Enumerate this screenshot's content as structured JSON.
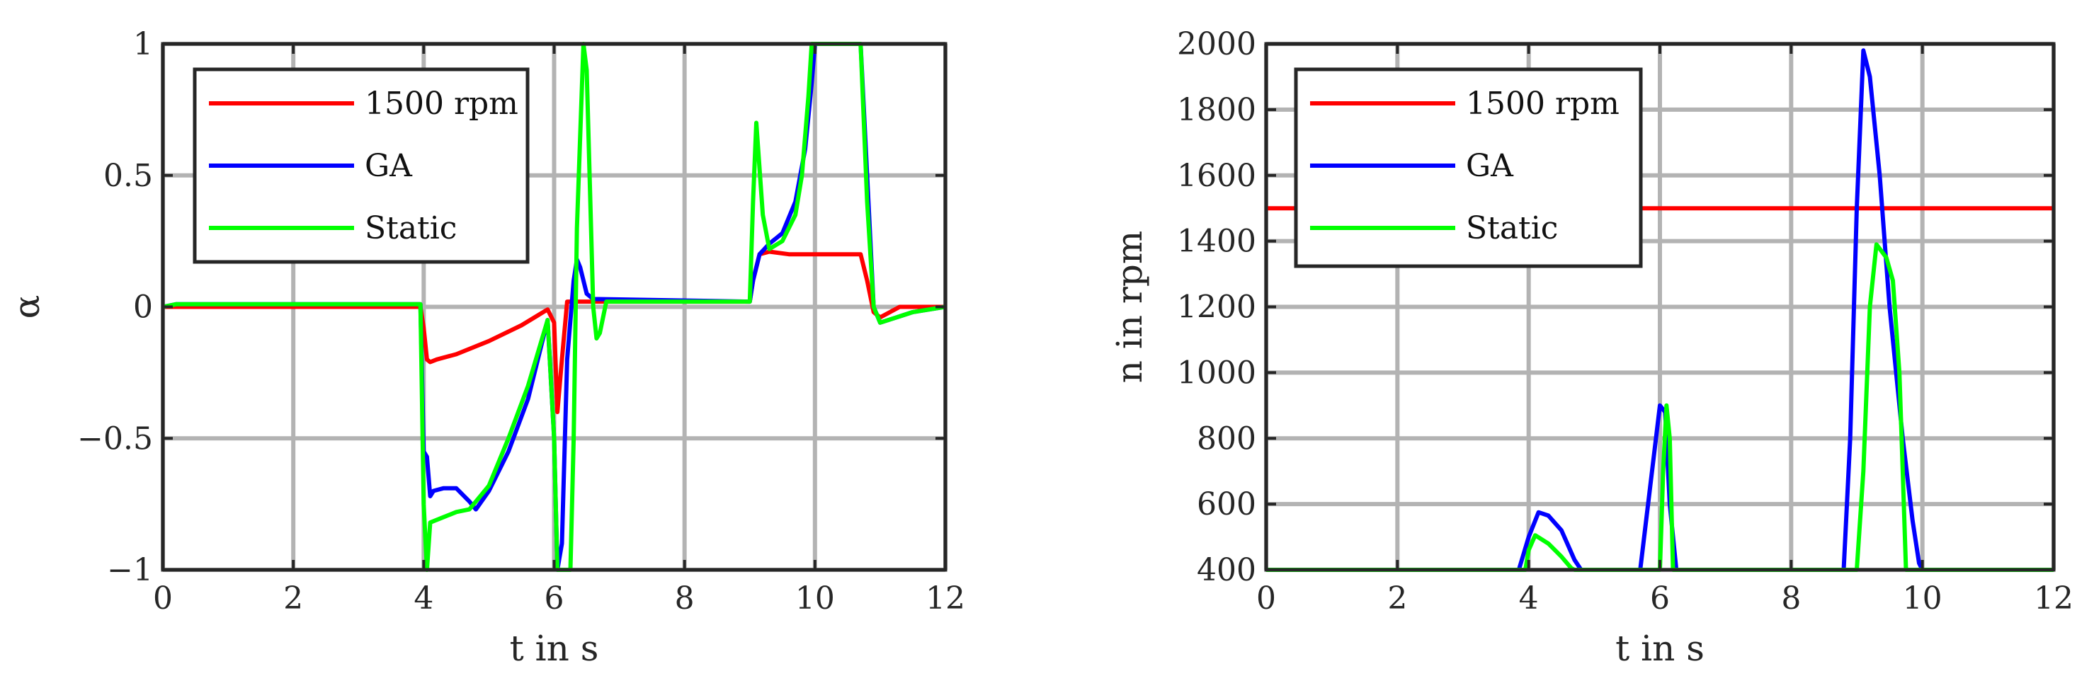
{
  "chart_data": [
    {
      "type": "line",
      "xlabel": "t in s",
      "ylabel": "α",
      "xlim": [
        0,
        12
      ],
      "ylim": [
        -1,
        1
      ],
      "xticks": [
        0,
        2,
        4,
        6,
        8,
        10,
        12
      ],
      "yticks": [
        -1,
        -0.5,
        0,
        0.5,
        1
      ],
      "xtick_labels": [
        "0",
        "2",
        "4",
        "6",
        "8",
        "10",
        "12"
      ],
      "ytick_labels": [
        "−1",
        "−0.5",
        "0",
        "0.5",
        "1"
      ],
      "grid": true,
      "legend_position": "top-left",
      "series": [
        {
          "name": "1500 rpm",
          "color": "#ff0000",
          "points": [
            [
              0,
              0
            ],
            [
              3.95,
              0
            ],
            [
              4.0,
              -0.08
            ],
            [
              4.05,
              -0.2
            ],
            [
              4.1,
              -0.21
            ],
            [
              4.2,
              -0.2
            ],
            [
              4.5,
              -0.18
            ],
            [
              5.0,
              -0.13
            ],
            [
              5.5,
              -0.07
            ],
            [
              5.9,
              -0.01
            ],
            [
              6.0,
              -0.06
            ],
            [
              6.05,
              -0.4
            ],
            [
              6.12,
              -0.2
            ],
            [
              6.2,
              0.02
            ],
            [
              6.3,
              0.02
            ],
            [
              9.0,
              0.02
            ],
            [
              9.05,
              0.1
            ],
            [
              9.15,
              0.2
            ],
            [
              9.3,
              0.21
            ],
            [
              9.6,
              0.2
            ],
            [
              10.7,
              0.2
            ],
            [
              10.8,
              0.1
            ],
            [
              10.9,
              -0.02
            ],
            [
              11.0,
              -0.04
            ],
            [
              11.3,
              0
            ],
            [
              12,
              0
            ]
          ]
        },
        {
          "name": "GA",
          "color": "#0000ff",
          "points": [
            [
              0,
              0
            ],
            [
              0.2,
              0.01
            ],
            [
              3.95,
              0.01
            ],
            [
              4.0,
              -0.55
            ],
            [
              4.05,
              -0.57
            ],
            [
              4.1,
              -0.72
            ],
            [
              4.15,
              -0.7
            ],
            [
              4.3,
              -0.69
            ],
            [
              4.5,
              -0.69
            ],
            [
              4.7,
              -0.74
            ],
            [
              4.8,
              -0.77
            ],
            [
              5.0,
              -0.7
            ],
            [
              5.3,
              -0.55
            ],
            [
              5.6,
              -0.35
            ],
            [
              5.9,
              -0.05
            ],
            [
              6.0,
              -0.5
            ],
            [
              6.05,
              -1.0
            ],
            [
              6.12,
              -0.9
            ],
            [
              6.2,
              -0.2
            ],
            [
              6.3,
              0.1
            ],
            [
              6.35,
              0.18
            ],
            [
              6.4,
              0.15
            ],
            [
              6.5,
              0.05
            ],
            [
              6.6,
              0.03
            ],
            [
              9.0,
              0.02
            ],
            [
              9.05,
              0.1
            ],
            [
              9.15,
              0.2
            ],
            [
              9.3,
              0.24
            ],
            [
              9.5,
              0.28
            ],
            [
              9.7,
              0.4
            ],
            [
              9.85,
              0.6
            ],
            [
              9.95,
              0.85
            ],
            [
              10.0,
              1
            ],
            [
              10.7,
              1
            ],
            [
              10.8,
              0.5
            ],
            [
              10.9,
              0
            ],
            [
              11.0,
              -0.06
            ],
            [
              11.5,
              -0.02
            ],
            [
              12,
              0
            ]
          ]
        },
        {
          "name": "Static",
          "color": "#00ff00",
          "points": [
            [
              0,
              0
            ],
            [
              0.2,
              0.01
            ],
            [
              3.95,
              0.01
            ],
            [
              4.0,
              -0.75
            ],
            [
              4.05,
              -1.0
            ],
            [
              4.1,
              -0.82
            ],
            [
              4.3,
              -0.8
            ],
            [
              4.5,
              -0.78
            ],
            [
              4.7,
              -0.77
            ],
            [
              5.0,
              -0.68
            ],
            [
              5.3,
              -0.5
            ],
            [
              5.6,
              -0.3
            ],
            [
              5.9,
              -0.05
            ],
            [
              6.0,
              -0.5
            ],
            [
              6.05,
              -1.0
            ],
            [
              6.25,
              -1.0
            ],
            [
              6.3,
              -0.5
            ],
            [
              6.35,
              0.3
            ],
            [
              6.45,
              1.0
            ],
            [
              6.5,
              0.9
            ],
            [
              6.6,
              0.0
            ],
            [
              6.65,
              -0.12
            ],
            [
              6.7,
              -0.1
            ],
            [
              6.8,
              0.02
            ],
            [
              9.0,
              0.02
            ],
            [
              9.05,
              0.4
            ],
            [
              9.1,
              0.7
            ],
            [
              9.2,
              0.35
            ],
            [
              9.3,
              0.22
            ],
            [
              9.5,
              0.25
            ],
            [
              9.7,
              0.35
            ],
            [
              9.8,
              0.5
            ],
            [
              9.9,
              0.8
            ],
            [
              9.95,
              1.0
            ],
            [
              10.7,
              1
            ],
            [
              10.8,
              0.4
            ],
            [
              10.9,
              0
            ],
            [
              11.0,
              -0.06
            ],
            [
              11.5,
              -0.02
            ],
            [
              12,
              0
            ]
          ]
        }
      ]
    },
    {
      "type": "line",
      "xlabel": "t in s",
      "ylabel": "n in rpm",
      "xlim": [
        0,
        12
      ],
      "ylim": [
        400,
        2000
      ],
      "xticks": [
        0,
        2,
        4,
        6,
        8,
        10,
        12
      ],
      "yticks": [
        400,
        600,
        800,
        1000,
        1200,
        1400,
        1600,
        1800,
        2000
      ],
      "xtick_labels": [
        "0",
        "2",
        "4",
        "6",
        "8",
        "10",
        "12"
      ],
      "ytick_labels": [
        "400",
        "600",
        "800",
        "1000",
        "1200",
        "1400",
        "1600",
        "1800",
        "2000"
      ],
      "grid": true,
      "legend_position": "top-left",
      "series": [
        {
          "name": "1500 rpm",
          "color": "#ff0000",
          "points": [
            [
              0,
              1500
            ],
            [
              12,
              1500
            ]
          ]
        },
        {
          "name": "GA",
          "color": "#0000ff",
          "points": [
            [
              0,
              400
            ],
            [
              3.85,
              400
            ],
            [
              4.0,
              500
            ],
            [
              4.15,
              575
            ],
            [
              4.3,
              565
            ],
            [
              4.5,
              520
            ],
            [
              4.7,
              430
            ],
            [
              4.8,
              400
            ],
            [
              5.7,
              400
            ],
            [
              5.85,
              650
            ],
            [
              6.0,
              900
            ],
            [
              6.08,
              880
            ],
            [
              6.15,
              600
            ],
            [
              6.25,
              400
            ],
            [
              8.8,
              400
            ],
            [
              8.9,
              800
            ],
            [
              9.0,
              1500
            ],
            [
              9.1,
              1980
            ],
            [
              9.2,
              1900
            ],
            [
              9.35,
              1600
            ],
            [
              9.5,
              1200
            ],
            [
              9.7,
              800
            ],
            [
              9.85,
              550
            ],
            [
              9.95,
              420
            ],
            [
              10.0,
              400
            ],
            [
              12,
              400
            ]
          ]
        },
        {
          "name": "Static",
          "color": "#00ff00",
          "points": [
            [
              0,
              400
            ],
            [
              3.95,
              400
            ],
            [
              4.0,
              460
            ],
            [
              4.1,
              505
            ],
            [
              4.3,
              480
            ],
            [
              4.5,
              440
            ],
            [
              4.65,
              405
            ],
            [
              4.7,
              400
            ],
            [
              6.0,
              400
            ],
            [
              6.05,
              700
            ],
            [
              6.1,
              900
            ],
            [
              6.15,
              800
            ],
            [
              6.2,
              400
            ],
            [
              9.0,
              400
            ],
            [
              9.1,
              700
            ],
            [
              9.2,
              1200
            ],
            [
              9.3,
              1390
            ],
            [
              9.45,
              1350
            ],
            [
              9.55,
              1280
            ],
            [
              9.65,
              1000
            ],
            [
              9.7,
              700
            ],
            [
              9.75,
              400
            ],
            [
              12,
              400
            ]
          ]
        }
      ]
    }
  ]
}
